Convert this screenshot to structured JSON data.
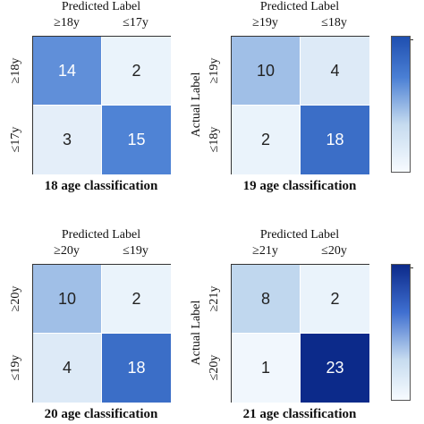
{
  "chart_data": [
    {
      "type": "heatmap",
      "title": "18 age classification",
      "xlabel": "Predicted Label",
      "ylabel": "",
      "x_categories": [
        "≥18y",
        "≤17y"
      ],
      "y_categories": [
        "≥18y",
        "≤17y"
      ],
      "values": [
        [
          14,
          2
        ],
        [
          3,
          15
        ]
      ]
    },
    {
      "type": "heatmap",
      "title": "19 age classification",
      "xlabel": "Predicted Label",
      "ylabel": "Actual Label",
      "x_categories": [
        "≥19y",
        "≤18y"
      ],
      "y_categories": [
        "≥19y",
        "≤18y"
      ],
      "values": [
        [
          10,
          4
        ],
        [
          2,
          18
        ]
      ]
    },
    {
      "type": "heatmap",
      "title": "20 age classification",
      "xlabel": "Predicted Label",
      "ylabel": "",
      "x_categories": [
        "≥20y",
        "≤19y"
      ],
      "y_categories": [
        "≥20y",
        "≤19y"
      ],
      "values": [
        [
          10,
          2
        ],
        [
          4,
          18
        ]
      ]
    },
    {
      "type": "heatmap",
      "title": "21 age classification",
      "xlabel": "Predicted Label",
      "ylabel": "Actual Label",
      "x_categories": [
        "≥21y",
        "≤20y"
      ],
      "y_categories": [
        "≥21y",
        "≤20y"
      ],
      "values": [
        [
          8,
          2
        ],
        [
          1,
          23
        ]
      ]
    }
  ]
}
